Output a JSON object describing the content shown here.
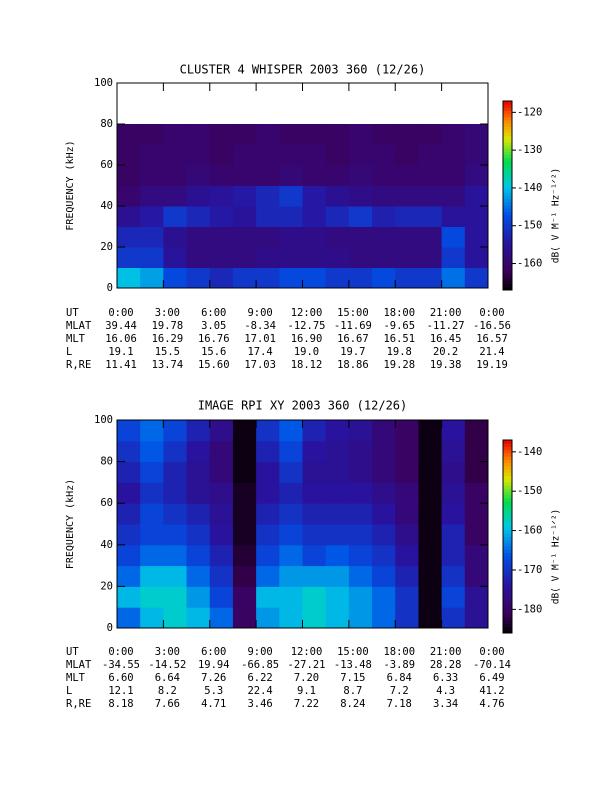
{
  "chart_data": [
    {
      "type": "heatmap",
      "title": "CLUSTER 4 WHISPER 2003 360 (12/26)",
      "ylabel": "FREQUENCY (kHz)",
      "zlabel": "dB( V M⁻¹ Hz⁻¹ᐟ²)",
      "xlim": [
        0,
        24
      ],
      "xticks": [
        {
          "value": 0,
          "label": "0:00"
        },
        {
          "value": 3,
          "label": "3:00"
        },
        {
          "value": 6,
          "label": "6:00"
        },
        {
          "value": 9,
          "label": "9:00"
        },
        {
          "value": 12,
          "label": "12:00"
        },
        {
          "value": 15,
          "label": "15:00"
        },
        {
          "value": 18,
          "label": "18:00"
        },
        {
          "value": 21,
          "label": "21:00"
        },
        {
          "value": 24,
          "label": "0:00"
        }
      ],
      "ylim": [
        0,
        100
      ],
      "yticks": [
        0,
        20,
        40,
        60,
        80,
        100
      ],
      "zlim": [
        -167,
        -117
      ],
      "zticks": [
        -160,
        -150,
        -140,
        -130,
        -120
      ],
      "x": [
        0,
        1.5,
        3,
        4.5,
        6,
        7.5,
        9,
        10.5,
        12,
        13.5,
        15,
        16.5,
        18,
        19.5,
        21,
        22.5,
        24
      ],
      "y": [
        0,
        10,
        20,
        30,
        40,
        50,
        60,
        70,
        80,
        90,
        100
      ],
      "z": [
        [
          -140,
          -142,
          -148,
          -150,
          -152,
          -150,
          -150,
          -148,
          -148,
          -150,
          -150,
          -148,
          -150,
          -150,
          -145,
          -150
        ],
        [
          -150,
          -150,
          -155,
          -158,
          -158,
          -158,
          -157,
          -157,
          -157,
          -157,
          -158,
          -158,
          -158,
          -158,
          -150,
          -155
        ],
        [
          -152,
          -152,
          -156,
          -158,
          -158,
          -158,
          -158,
          -157,
          -157,
          -158,
          -158,
          -158,
          -158,
          -158,
          -148,
          -155
        ],
        [
          -156,
          -154,
          -150,
          -152,
          -154,
          -155,
          -152,
          -152,
          -154,
          -152,
          -150,
          -153,
          -152,
          -152,
          -155,
          -155
        ],
        [
          -160,
          -158,
          -158,
          -156,
          -155,
          -154,
          -152,
          -150,
          -154,
          -156,
          -157,
          -158,
          -158,
          -158,
          -158,
          -155
        ],
        [
          -161,
          -160,
          -160,
          -159,
          -160,
          -160,
          -160,
          -159,
          -160,
          -160,
          -159,
          -160,
          -160,
          -160,
          -160,
          -158
        ],
        [
          -161,
          -160,
          -160,
          -160,
          -161,
          -160,
          -160,
          -160,
          -160,
          -161,
          -160,
          -160,
          -161,
          -160,
          -160,
          -159
        ],
        [
          -161,
          -161,
          -160,
          -160,
          -161,
          -161,
          -160,
          -161,
          -161,
          -161,
          -160,
          -161,
          -161,
          -161,
          -160,
          -159
        ],
        [
          null,
          null,
          null,
          null,
          null,
          null,
          null,
          null,
          null,
          null,
          null,
          null,
          null,
          null,
          null,
          null
        ],
        [
          null,
          null,
          null,
          null,
          null,
          null,
          null,
          null,
          null,
          null,
          null,
          null,
          null,
          null,
          null,
          null
        ]
      ],
      "ephemeris": [
        {
          "name": "MLAT",
          "values": [
            "39.44",
            "19.78",
            "3.05",
            "-8.34",
            "-12.75",
            "-11.69",
            "-9.65",
            "-11.27",
            "-16.56"
          ]
        },
        {
          "name": "MLT",
          "values": [
            "16.06",
            "16.29",
            "16.76",
            "17.01",
            "16.90",
            "16.67",
            "16.51",
            "16.45",
            "16.57"
          ]
        },
        {
          "name": "L",
          "values": [
            "19.1",
            "15.5",
            "15.6",
            "17.4",
            "19.0",
            "19.7",
            "19.8",
            "20.2",
            "21.4"
          ]
        },
        {
          "name": "R,RE",
          "values": [
            "11.41",
            "13.74",
            "15.60",
            "17.03",
            "18.12",
            "18.86",
            "19.28",
            "19.38",
            "19.19"
          ]
        }
      ],
      "xlabel": "UT"
    },
    {
      "type": "heatmap",
      "title": "IMAGE RPI XY 2003 360 (12/26)",
      "ylabel": "FREQUENCY (kHz)",
      "zlabel": "dB( V M⁻¹ Hz⁻¹ᐟ²)",
      "xlim": [
        0,
        24
      ],
      "xticks": [
        {
          "value": 0,
          "label": "0:00"
        },
        {
          "value": 3,
          "label": "3:00"
        },
        {
          "value": 6,
          "label": "6:00"
        },
        {
          "value": 9,
          "label": "9:00"
        },
        {
          "value": 12,
          "label": "12:00"
        },
        {
          "value": 15,
          "label": "15:00"
        },
        {
          "value": 18,
          "label": "18:00"
        },
        {
          "value": 21,
          "label": "21:00"
        },
        {
          "value": 24,
          "label": "0:00"
        }
      ],
      "ylim": [
        0,
        100
      ],
      "yticks": [
        0,
        20,
        40,
        60,
        80,
        100
      ],
      "zlim": [
        -186,
        -137
      ],
      "zticks": [
        -180,
        -170,
        -160,
        -150,
        -140
      ],
      "x": [
        0,
        1.5,
        3,
        4.5,
        6,
        7.5,
        9,
        10.5,
        12,
        13.5,
        15,
        16.5,
        18,
        19.5,
        21,
        22.5,
        24
      ],
      "y": [
        0,
        10,
        20,
        30,
        40,
        50,
        60,
        70,
        80,
        90,
        100
      ],
      "z": [
        [
          -165,
          -160,
          -158,
          -160,
          -165,
          -180,
          -162,
          -160,
          -158,
          -160,
          -162,
          -165,
          -170,
          -185,
          -170,
          -175
        ],
        [
          -160,
          -158,
          -158,
          -162,
          -168,
          -180,
          -160,
          -160,
          -158,
          -160,
          -162,
          -165,
          -170,
          -185,
          -168,
          -175
        ],
        [
          -165,
          -160,
          -160,
          -165,
          -170,
          -182,
          -165,
          -162,
          -162,
          -162,
          -165,
          -168,
          -172,
          -185,
          -170,
          -178
        ],
        [
          -168,
          -165,
          -165,
          -168,
          -172,
          -183,
          -168,
          -165,
          -168,
          -166,
          -168,
          -170,
          -174,
          -185,
          -172,
          -178
        ],
        [
          -170,
          -168,
          -168,
          -170,
          -174,
          -184,
          -170,
          -168,
          -170,
          -170,
          -170,
          -172,
          -176,
          -185,
          -172,
          -180
        ],
        [
          -172,
          -168,
          -170,
          -172,
          -175,
          -184,
          -172,
          -170,
          -172,
          -172,
          -172,
          -174,
          -178,
          -185,
          -174,
          -180
        ],
        [
          -174,
          -170,
          -172,
          -175,
          -176,
          -184,
          -174,
          -172,
          -174,
          -174,
          -174,
          -176,
          -178,
          -185,
          -175,
          -180
        ],
        [
          -172,
          -168,
          -172,
          -175,
          -178,
          -185,
          -174,
          -170,
          -175,
          -175,
          -176,
          -178,
          -180,
          -185,
          -176,
          -182
        ],
        [
          -170,
          -166,
          -170,
          -174,
          -178,
          -185,
          -172,
          -168,
          -174,
          -175,
          -176,
          -178,
          -180,
          -185,
          -175,
          -182
        ],
        [
          -168,
          -165,
          -168,
          -172,
          -176,
          -185,
          -170,
          -166,
          -172,
          -174,
          -175,
          -178,
          -180,
          -185,
          -174,
          -182
        ]
      ],
      "ephemeris": [
        {
          "name": "MLAT",
          "values": [
            "-34.55",
            "-14.52",
            "19.94",
            "-66.85",
            "-27.21",
            "-13.48",
            "-3.89",
            "28.28",
            "-70.14"
          ]
        },
        {
          "name": "MLT",
          "values": [
            "6.60",
            "6.64",
            "7.26",
            "6.22",
            "7.20",
            "7.15",
            "6.84",
            "6.33",
            "6.49"
          ]
        },
        {
          "name": "L",
          "values": [
            "12.1",
            "8.2",
            "5.3",
            "22.4",
            "9.1",
            "8.7",
            "7.2",
            "4.3",
            "41.2"
          ]
        },
        {
          "name": "R,RE",
          "values": [
            "8.18",
            "7.66",
            "4.71",
            "3.46",
            "7.22",
            "8.24",
            "7.18",
            "3.34",
            "4.76"
          ]
        }
      ],
      "xlabel": "UT"
    }
  ]
}
